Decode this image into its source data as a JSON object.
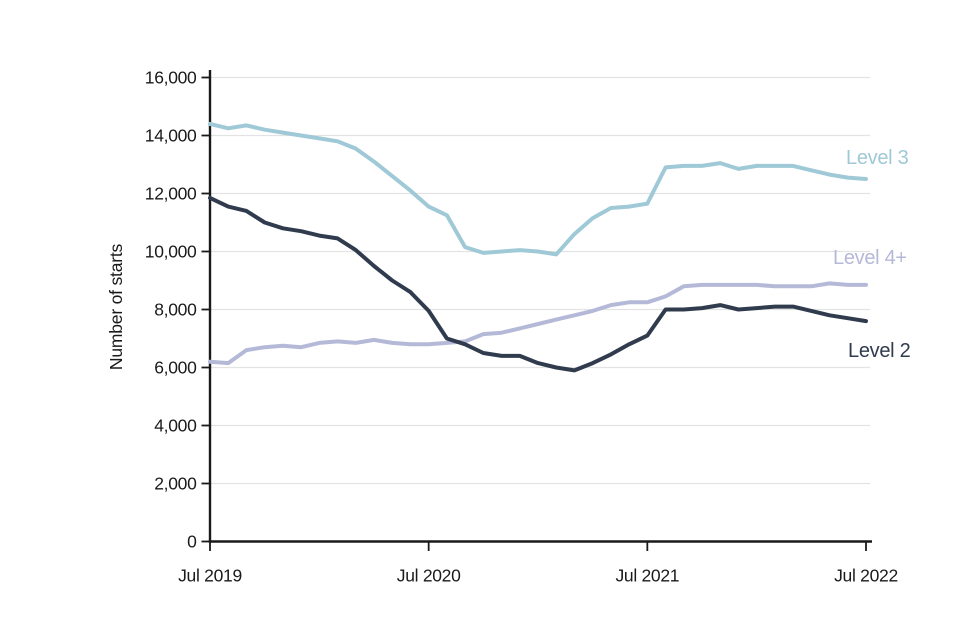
{
  "figure": {
    "description": "Line chart of apprenticeship starts by level, monthly Jul 2019 to Jul 2022"
  },
  "chart_data": {
    "type": "line",
    "title": "",
    "xlabel": "",
    "ylabel": "Number of starts",
    "ylim": [
      0,
      16000
    ],
    "ytick_step": 2000,
    "ytick_labels": [
      "0",
      "2,000",
      "4,000",
      "6,000",
      "8,000",
      "10,000",
      "12,000",
      "14,000",
      "16,000"
    ],
    "xtick_labels": [
      "Jul 2019",
      "Jul 2020",
      "Jul 2021",
      "Jul 2022"
    ],
    "xtick_indices": [
      0,
      12,
      24,
      36
    ],
    "grid": "horizontal",
    "legend_position": "end-of-line labels, right side",
    "x": [
      "Jul 2019",
      "Aug 2019",
      "Sep 2019",
      "Oct 2019",
      "Nov 2019",
      "Dec 2019",
      "Jan 2020",
      "Feb 2020",
      "Mar 2020",
      "Apr 2020",
      "May 2020",
      "Jun 2020",
      "Jul 2020",
      "Aug 2020",
      "Sep 2020",
      "Oct 2020",
      "Nov 2020",
      "Dec 2020",
      "Jan 2021",
      "Feb 2021",
      "Mar 2021",
      "Apr 2021",
      "May 2021",
      "Jun 2021",
      "Jul 2021",
      "Aug 2021",
      "Sep 2021",
      "Oct 2021",
      "Nov 2021",
      "Dec 2021",
      "Jan 2022",
      "Feb 2022",
      "Mar 2022",
      "Apr 2022",
      "May 2022",
      "Jun 2022",
      "Jul 2022"
    ],
    "series": [
      {
        "name": "Level 3",
        "color": "#9fc9d6",
        "values": [
          14400,
          14250,
          14350,
          14200,
          14100,
          14000,
          13900,
          13800,
          13550,
          13100,
          12600,
          12100,
          11550,
          11250,
          10150,
          9950,
          10000,
          10050,
          10000,
          9900,
          10600,
          11150,
          11500,
          11550,
          11650,
          12900,
          12950,
          12950,
          13050,
          12850,
          12950,
          12950,
          12950,
          12800,
          12650,
          12550,
          12500
        ]
      },
      {
        "name": "Level 4+",
        "color": "#b5b9d8",
        "values": [
          6200,
          6150,
          6600,
          6700,
          6750,
          6700,
          6850,
          6900,
          6850,
          6950,
          6850,
          6800,
          6800,
          6850,
          6900,
          7150,
          7200,
          7350,
          7500,
          7650,
          7800,
          7950,
          8150,
          8250,
          8250,
          8450,
          8800,
          8850,
          8850,
          8850,
          8850,
          8800,
          8800,
          8800,
          8900,
          8850,
          8850
        ]
      },
      {
        "name": "Level 2",
        "color": "#303b4e",
        "values": [
          11850,
          11550,
          11400,
          11000,
          10800,
          10700,
          10550,
          10450,
          10050,
          9500,
          9000,
          8600,
          7950,
          7000,
          6800,
          6500,
          6400,
          6400,
          6150,
          6000,
          5900,
          6150,
          6450,
          6800,
          7100,
          8000,
          8000,
          8050,
          8150,
          8000,
          8050,
          8100,
          8100,
          7950,
          7800,
          7700,
          7600
        ]
      }
    ],
    "colors": {
      "level3": "#9fc9d6",
      "level4plus": "#b5b9d8",
      "level2": "#303b4e",
      "gridline": "#e3e3e3",
      "axis": "#1a1a1a"
    }
  }
}
